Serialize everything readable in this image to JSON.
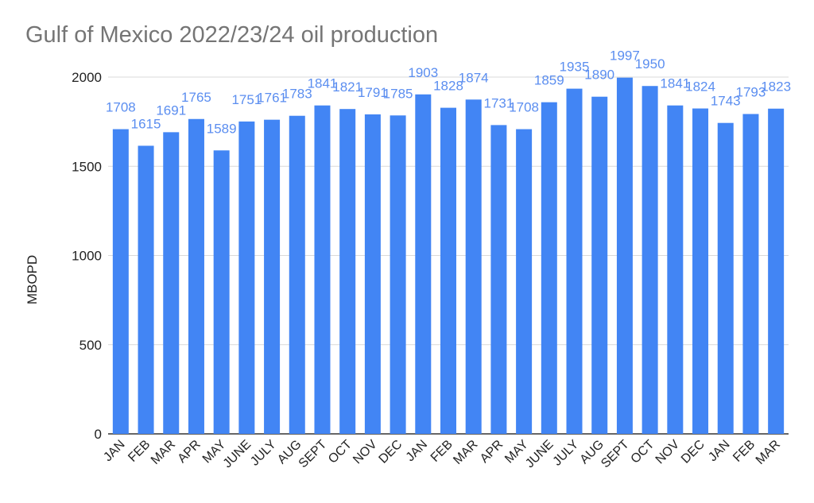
{
  "chart_data": {
    "type": "bar",
    "title": "Gulf of Mexico 2022/23/24 oil production",
    "ylabel": "MBOPD",
    "xlabel": "",
    "ylim": [
      0,
      2000
    ],
    "yticks": [
      0,
      500,
      1000,
      1500,
      2000
    ],
    "grid": true,
    "bar_color": "#4285f4",
    "label_color": "#5b8ef0",
    "categories": [
      "JAN",
      "FEB",
      "MAR",
      "APR",
      "MAY",
      "JUNE",
      "JULY",
      "AUG",
      "SEPT",
      "OCT",
      "NOV",
      "DEC",
      "JAN",
      "FEB",
      "MAR",
      "APR",
      "MAY",
      "JUNE",
      "JULY",
      "AUG",
      "SEPT",
      "OCT",
      "NOV",
      "DEC",
      "JAN",
      "FEB",
      "MAR"
    ],
    "values": [
      1708,
      1615,
      1691,
      1765,
      1589,
      1751,
      1761,
      1783,
      1841,
      1821,
      1791,
      1785,
      1903,
      1828,
      1874,
      1731,
      1708,
      1859,
      1935,
      1890,
      1997,
      1950,
      1841,
      1824,
      1743,
      1793,
      1823
    ]
  }
}
